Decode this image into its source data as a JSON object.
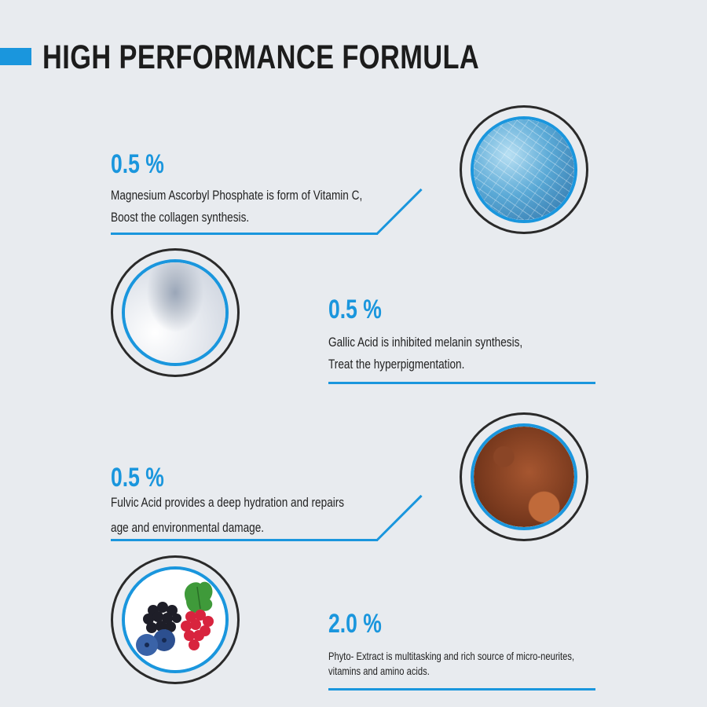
{
  "header": {
    "title": "HIGH PERFORMANCE FORMULA"
  },
  "colors": {
    "accent": "#1a96dd",
    "background": "#e8ebef",
    "text": "#1b1b1b"
  },
  "ingredients": [
    {
      "percent": "0.5 %",
      "lines": [
        "Magnesium Ascorbyl Phosphate is form of Vitamin C,",
        "Boost the collagen synthesis."
      ],
      "image": "ice-crystals-image"
    },
    {
      "percent": "0.5 %",
      "lines": [
        "Gallic Acid is inhibited melanin synthesis,",
        "Treat the hyperpigmentation."
      ],
      "image": "white-powder-image"
    },
    {
      "percent": "0.5 %",
      "lines": [
        "Fulvic Acid provides a deep hydration and repairs",
        "age and environmental damage."
      ],
      "image": "brown-powder-image"
    },
    {
      "percent": "2.0 %",
      "lines": [
        "Phyto- Extract is multitasking and rich source of micro-neurites,",
        "vitamins and amino acids."
      ],
      "image": "berries-image"
    }
  ]
}
